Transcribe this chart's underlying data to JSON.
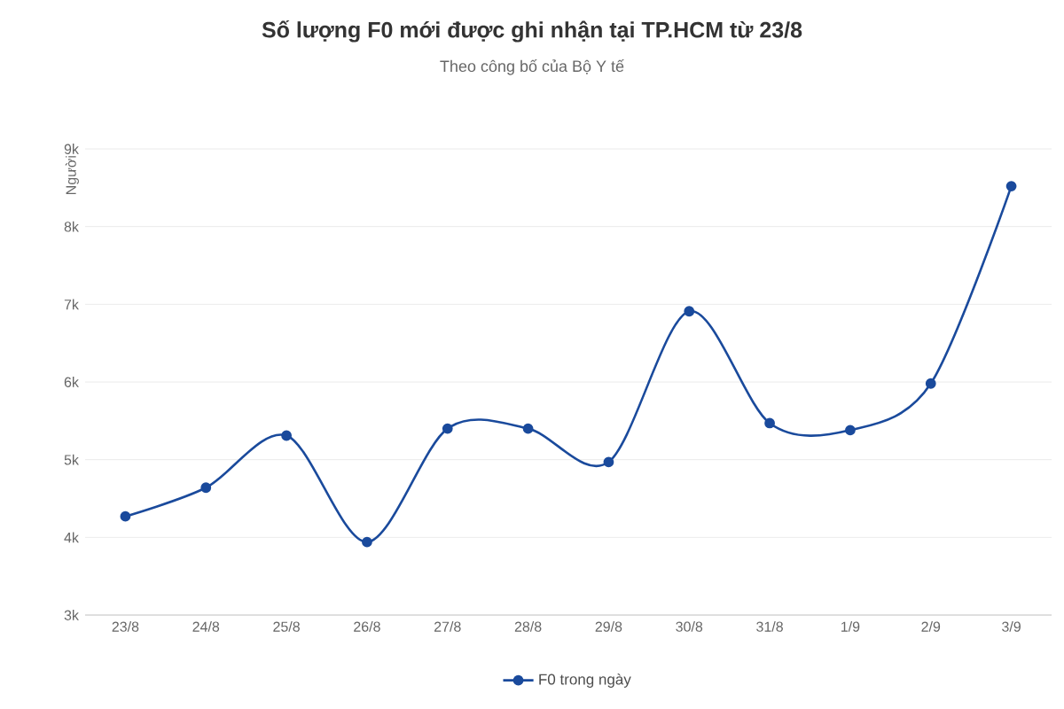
{
  "chart_data": {
    "type": "line",
    "title": "Số lượng F0 mới được ghi nhận tại TP.HCM từ 23/8",
    "subtitle": "Theo công bố của Bộ Y tế",
    "ylabel": "Người",
    "categories": [
      "23/8",
      "24/8",
      "25/8",
      "26/8",
      "27/8",
      "28/8",
      "29/8",
      "30/8",
      "31/8",
      "1/9",
      "2/9",
      "3/9"
    ],
    "series": [
      {
        "name": "F0 trong ngày",
        "color": "#1a4a9c",
        "values": [
          4270,
          4640,
          5310,
          3940,
          5400,
          5400,
          4970,
          6910,
          5470,
          5380,
          5980,
          8520
        ]
      }
    ],
    "ylim": [
      3000,
      9000
    ],
    "yticks": [
      {
        "value": 3000,
        "label": "3k"
      },
      {
        "value": 4000,
        "label": "4k"
      },
      {
        "value": 5000,
        "label": "5k"
      },
      {
        "value": 6000,
        "label": "6k"
      },
      {
        "value": 7000,
        "label": "7k"
      },
      {
        "value": 8000,
        "label": "8k"
      },
      {
        "value": 9000,
        "label": "9k"
      }
    ],
    "grid": "y",
    "legend": "bottom",
    "marker": "circle",
    "line_style": "solid"
  }
}
